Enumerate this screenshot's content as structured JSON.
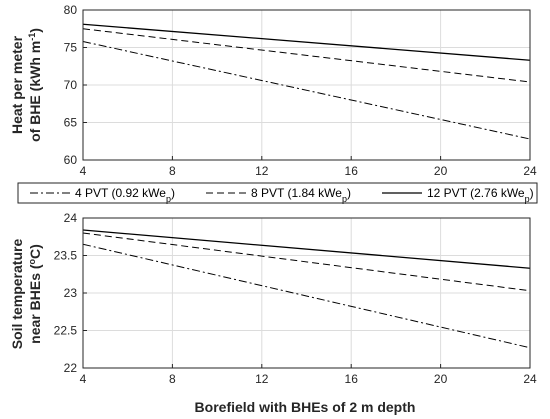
{
  "chart_data": [
    {
      "type": "line",
      "x": [
        4,
        24
      ],
      "xticks": [
        "4",
        "8",
        "12",
        "16",
        "20",
        "24"
      ],
      "xlim": [
        4,
        24
      ],
      "ylim": [
        60,
        80
      ],
      "yticks": [
        "60",
        "65",
        "70",
        "75",
        "80"
      ],
      "ylabel": [
        "Heat per meter",
        "of BHE (kWh m",
        "-1",
        ")"
      ],
      "grid": true,
      "series": [
        {
          "name": "4 PVT (0.92 kWe",
          "name_sub": "p",
          "name_end": ")",
          "style": "dashdot",
          "values": [
            75.8,
            62.8
          ]
        },
        {
          "name": "8 PVT (1.84 kWe",
          "name_sub": "p",
          "name_end": ")",
          "style": "dashed",
          "values": [
            77.5,
            70.4
          ]
        },
        {
          "name": "12 PVT (2.76 kWe",
          "name_sub": "p",
          "name_end": ")",
          "style": "solid",
          "values": [
            78.1,
            73.3
          ]
        }
      ]
    },
    {
      "type": "line",
      "x": [
        4,
        24
      ],
      "xticks": [
        "4",
        "8",
        "12",
        "16",
        "20",
        "24"
      ],
      "xlim": [
        4,
        24
      ],
      "ylim": [
        22,
        24
      ],
      "yticks": [
        "22",
        "22.5",
        "23",
        "23.5",
        "24"
      ],
      "xlabel": "Borefield with BHEs of 2 m depth",
      "ylabel": [
        "Soil temperature",
        "near BHEs (",
        "o",
        "C)"
      ],
      "grid": true,
      "series": [
        {
          "name": "4 PVT (0.92 kWe",
          "name_sub": "p",
          "name_end": ")",
          "style": "dashdot",
          "values": [
            23.65,
            22.27
          ]
        },
        {
          "name": "8 PVT (1.84 kWe",
          "name_sub": "p",
          "name_end": ")",
          "style": "dashed",
          "values": [
            23.8,
            23.03
          ]
        },
        {
          "name": "12 PVT (2.76 kWe",
          "name_sub": "p",
          "name_end": ")",
          "style": "solid",
          "values": [
            23.84,
            23.33
          ]
        }
      ]
    }
  ],
  "legend": {
    "position": "between-panels",
    "entries": [
      {
        "text": "4 PVT (0.92 kWe",
        "sub": "p",
        "end": ")",
        "style": "dashdot"
      },
      {
        "text": "8 PVT (1.84 kWe",
        "sub": "p",
        "end": ")",
        "style": "dashed"
      },
      {
        "text": "12 PVT (2.76 kWe",
        "sub": "p",
        "end": ")",
        "style": "solid"
      }
    ]
  },
  "colors": {
    "line": "#000000",
    "grid": "#dcdcdc",
    "axis": "#262626"
  }
}
